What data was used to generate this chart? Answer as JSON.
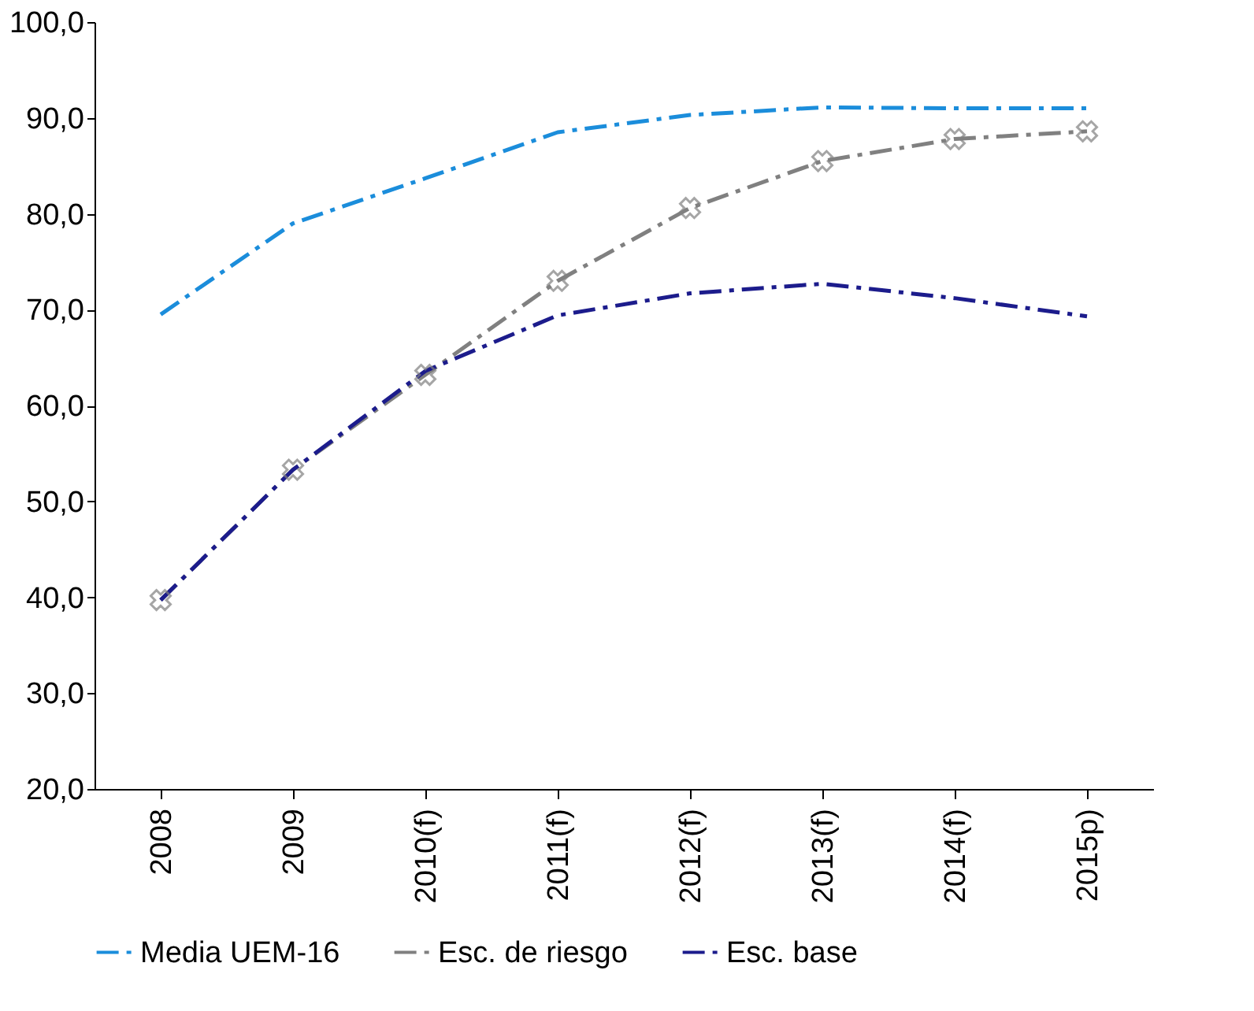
{
  "chart_data": {
    "type": "line",
    "categories": [
      "2008",
      "2009",
      "2010(f)",
      "2011(f)",
      "2012(f)",
      "2013(f)",
      "2014(f)",
      "2015p)"
    ],
    "series": [
      {
        "name": "Media UEM-16",
        "color": "#1b8ddb",
        "line_style": "dashed",
        "marker": "none",
        "values": [
          69.5,
          79.0,
          83.7,
          88.5,
          90.3,
          91.1,
          91.0,
          91.0
        ]
      },
      {
        "name": "Esc. de riesgo",
        "color": "#808080",
        "line_style": "dashed",
        "marker": "cross",
        "values": [
          39.7,
          53.3,
          63.2,
          73.0,
          80.6,
          85.5,
          87.8,
          88.6
        ]
      },
      {
        "name": "Esc. base",
        "color": "#1c1c8c",
        "line_style": "dashed",
        "marker": "none",
        "values": [
          39.7,
          53.3,
          63.6,
          69.4,
          71.7,
          72.7,
          71.2,
          69.3
        ]
      }
    ],
    "ylim": [
      20,
      100
    ],
    "yticks": [
      {
        "value": 20,
        "label": "20,0"
      },
      {
        "value": 30,
        "label": "30,0"
      },
      {
        "value": 40,
        "label": "40,0"
      },
      {
        "value": 50,
        "label": "50,0"
      },
      {
        "value": 60,
        "label": "60,0"
      },
      {
        "value": 70,
        "label": "70,0"
      },
      {
        "value": 80,
        "label": "80,0"
      },
      {
        "value": 90,
        "label": "90,0"
      },
      {
        "value": 100,
        "label": "100,0"
      }
    ],
    "grid": false,
    "legend": "bottom"
  }
}
